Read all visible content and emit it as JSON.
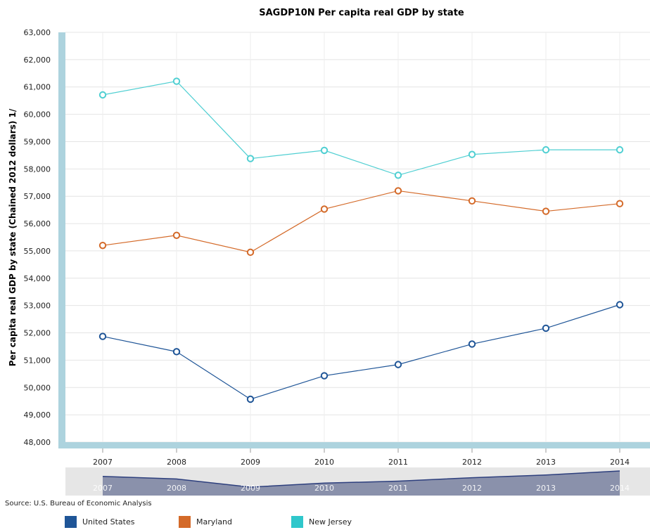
{
  "chart_data": {
    "type": "line",
    "title": "SAGDP10N Per capita real GDP by state",
    "ylabel": "Per capita real GDP by state (Chained 2012 dollars) 1/",
    "xlabel": "",
    "x": [
      "2007",
      "2008",
      "2009",
      "2010",
      "2011",
      "2012",
      "2013",
      "2014"
    ],
    "ylim": [
      48000,
      63000
    ],
    "yticks": [
      "48,000",
      "49,000",
      "50,000",
      "51,000",
      "52,000",
      "53,000",
      "54,000",
      "55,000",
      "56,000",
      "57,000",
      "58,000",
      "59,000",
      "60,000",
      "61,000",
      "62,000",
      "63,000"
    ],
    "grid": true,
    "legend_position": "bottom",
    "series": [
      {
        "name": "United States",
        "color": "#1f5597",
        "values": [
          51870,
          51310,
          49570,
          50430,
          50840,
          51590,
          52170,
          53030
        ]
      },
      {
        "name": "Maryland",
        "color": "#d46a29",
        "values": [
          55200,
          55570,
          54950,
          56530,
          57200,
          56830,
          56450,
          56730
        ]
      },
      {
        "name": "New Jersey",
        "color": "#4fcfd2",
        "values": [
          60710,
          61210,
          58380,
          58680,
          57770,
          58530,
          58700,
          58700
        ]
      }
    ],
    "navigator": {
      "series": "United States",
      "x": [
        "2007",
        "2008",
        "2009",
        "2010",
        "2011",
        "2012",
        "2013",
        "2014"
      ]
    }
  },
  "source": "Source: U.S. Bureau of Economic Analysis"
}
